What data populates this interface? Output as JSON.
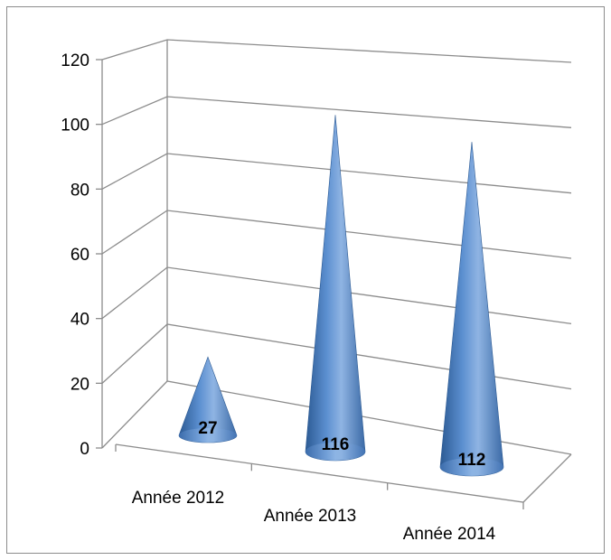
{
  "chart_data": {
    "type": "bar",
    "style": "3d-cone",
    "categories": [
      "Année 2012",
      "Année 2013",
      "Année 2014"
    ],
    "values": [
      27,
      116,
      112
    ],
    "data_labels": [
      "27",
      "116",
      "112"
    ],
    "yticks": [
      "0",
      "20",
      "40",
      "60",
      "80",
      "100",
      "120"
    ],
    "ylim": [
      0,
      120
    ],
    "grid": true,
    "legend": "none",
    "colors": {
      "cone": "#4f81bd",
      "cone_dark": "#2c5a93",
      "cone_light": "#8fb4e3",
      "grid": "#8c8c8c",
      "axis": "#8c8c8c"
    }
  }
}
